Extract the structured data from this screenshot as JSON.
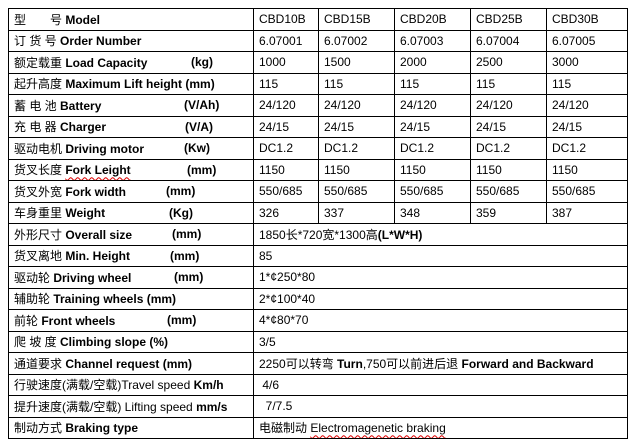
{
  "rows": [
    {
      "cn": "型　　号 ",
      "en": "Model",
      "unit": "",
      "values": [
        "CBD10B",
        "CBD15B",
        "CBD20B",
        "CBD25B",
        "CBD30B"
      ]
    },
    {
      "cn": "订 货 号 ",
      "en": "Order Number",
      "unit": "",
      "values": [
        "6.07001",
        "6.07002",
        "6.07003",
        "6.07004",
        "6.07005"
      ]
    },
    {
      "cn": "额定载重 ",
      "en": " Load Capacity",
      "unit": "(kg)",
      "values": [
        "1000",
        "1500",
        "2000",
        "2500",
        "3000"
      ]
    },
    {
      "cn": "起升高度 ",
      "en": "Maximum Lift height",
      "unit": "(mm)",
      "values": [
        "115",
        "115",
        "115",
        "115",
        "115"
      ]
    },
    {
      "cn": "蓄 电 池 ",
      "en": "Battery",
      "unit": "(V/Ah)",
      "values": [
        "24/120",
        "24/120",
        "24/120",
        "24/120",
        "24/120"
      ]
    },
    {
      "cn": "充 电 器 ",
      "en": "Charger",
      "unit": "(V/A)",
      "values": [
        "24/15",
        "24/15",
        "24/15",
        "24/15",
        "24/15"
      ]
    },
    {
      "cn": "驱动电机 ",
      "en": "Driving motor",
      "unit": "(Kw)",
      "values": [
        "DC1.2",
        "DC1.2",
        "DC1.2",
        "DC1.2",
        "DC1.2"
      ]
    },
    {
      "cn": "货叉长度 ",
      "en": "Fork Leight",
      "unit": "(mm)",
      "values": [
        "1150",
        "1150",
        "1150",
        "1150",
        "1150"
      ]
    },
    {
      "cn": "货叉外宽 ",
      "en": "Fork width",
      "unit": "(mm)",
      "values": [
        "550/685",
        "550/685",
        "550/685",
        "550/685",
        "550/685"
      ]
    },
    {
      "cn": "车身重里 ",
      "en": "Weight",
      "unit": "(Kg)",
      "values": [
        "326",
        "337",
        "348",
        "359",
        "387"
      ]
    },
    {
      "cn": "外形尺寸 ",
      "en": "Overall size",
      "unit": "(mm)",
      "span": [
        {
          "t": "1850长*720宽*1300高",
          "b": false
        },
        {
          "t": "(L*W*H)",
          "b": true
        }
      ]
    },
    {
      "cn": "货叉离地 ",
      "en": "Min. Height",
      "unit": "(mm)",
      "span": [
        {
          "t": "85",
          "b": false
        }
      ]
    },
    {
      "cn": "驱动轮 ",
      "en": " Driving wheel",
      "unit": "(mm)",
      "span": [
        {
          "t": "1*¢250*80",
          "b": false
        }
      ]
    },
    {
      "cn": "辅助轮 ",
      "en": "Training wheels",
      "unit": "(mm)",
      "span": [
        {
          "t": "2*¢100*40",
          "b": false
        }
      ]
    },
    {
      "cn": "前轮 ",
      "en": "Front wheels",
      "unit": "(mm)",
      "span": [
        {
          "t": "4*¢80*70",
          "b": false
        }
      ]
    },
    {
      "cn": "爬 坡 度 ",
      "en": " Climbing slope",
      "unit": "(%)",
      "span": [
        {
          "t": "3/5",
          "b": false
        }
      ]
    },
    {
      "cn": "通道要求 ",
      "en": " Channel request",
      "unit": "(mm)",
      "span": [
        {
          "t": "2250可以转弯 ",
          "b": false
        },
        {
          "t": "Turn",
          "b": true
        },
        {
          "t": ",750可以前进后退 ",
          "b": false
        },
        {
          "t": "Forward and Backward",
          "b": true
        }
      ]
    },
    {
      "cn": "行驶速度(满载/空载)",
      "en": "Travel speed",
      "unit": "Km/h",
      "light": true,
      "span": [
        {
          "t": " 4/6",
          "b": false
        }
      ]
    },
    {
      "cn": "提升速度(满载/空载) ",
      "en": "Lifting speed",
      "unit": "mm/s",
      "light": true,
      "span": [
        {
          "t": "  7/7.5",
          "b": false
        }
      ]
    },
    {
      "cn": "制动方式 ",
      "en": "Braking type",
      "unit": "",
      "span": [
        {
          "t": "电磁制动 ",
          "b": false
        },
        {
          "t": "Electromagenetic braking",
          "b": false,
          "sq": true
        }
      ]
    }
  ]
}
